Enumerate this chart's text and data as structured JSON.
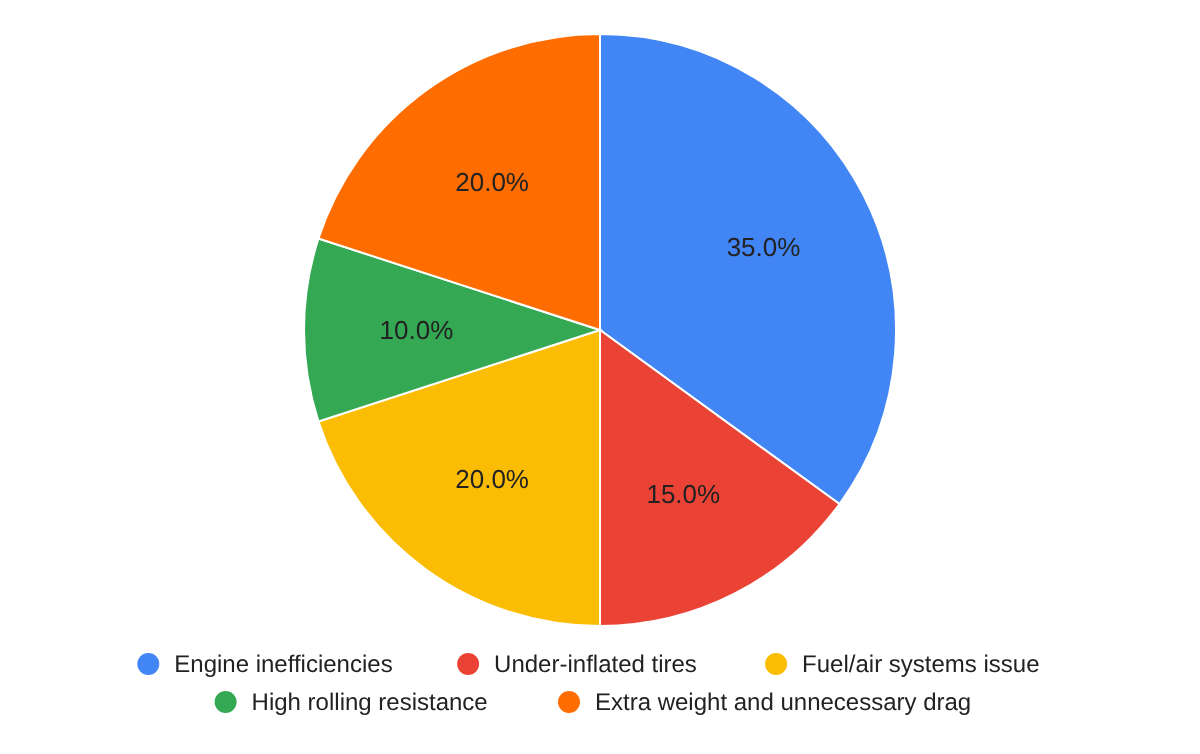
{
  "chart_data": {
    "type": "pie",
    "categories": [
      "Engine inefficiencies",
      "Under-inflated tires",
      "Fuel/air systems issue",
      "High rolling resistance",
      "Extra weight and unnecessary drag"
    ],
    "values": [
      35,
      15,
      20,
      10,
      20
    ],
    "colors": [
      "#4285f4",
      "#ea4335",
      "#fbbc04",
      "#34a853",
      "#ff6d01"
    ],
    "value_labels": [
      "35.0%",
      "15.0%",
      "20.0%",
      "10.0%",
      "20.0%"
    ],
    "legend": "bottom"
  }
}
